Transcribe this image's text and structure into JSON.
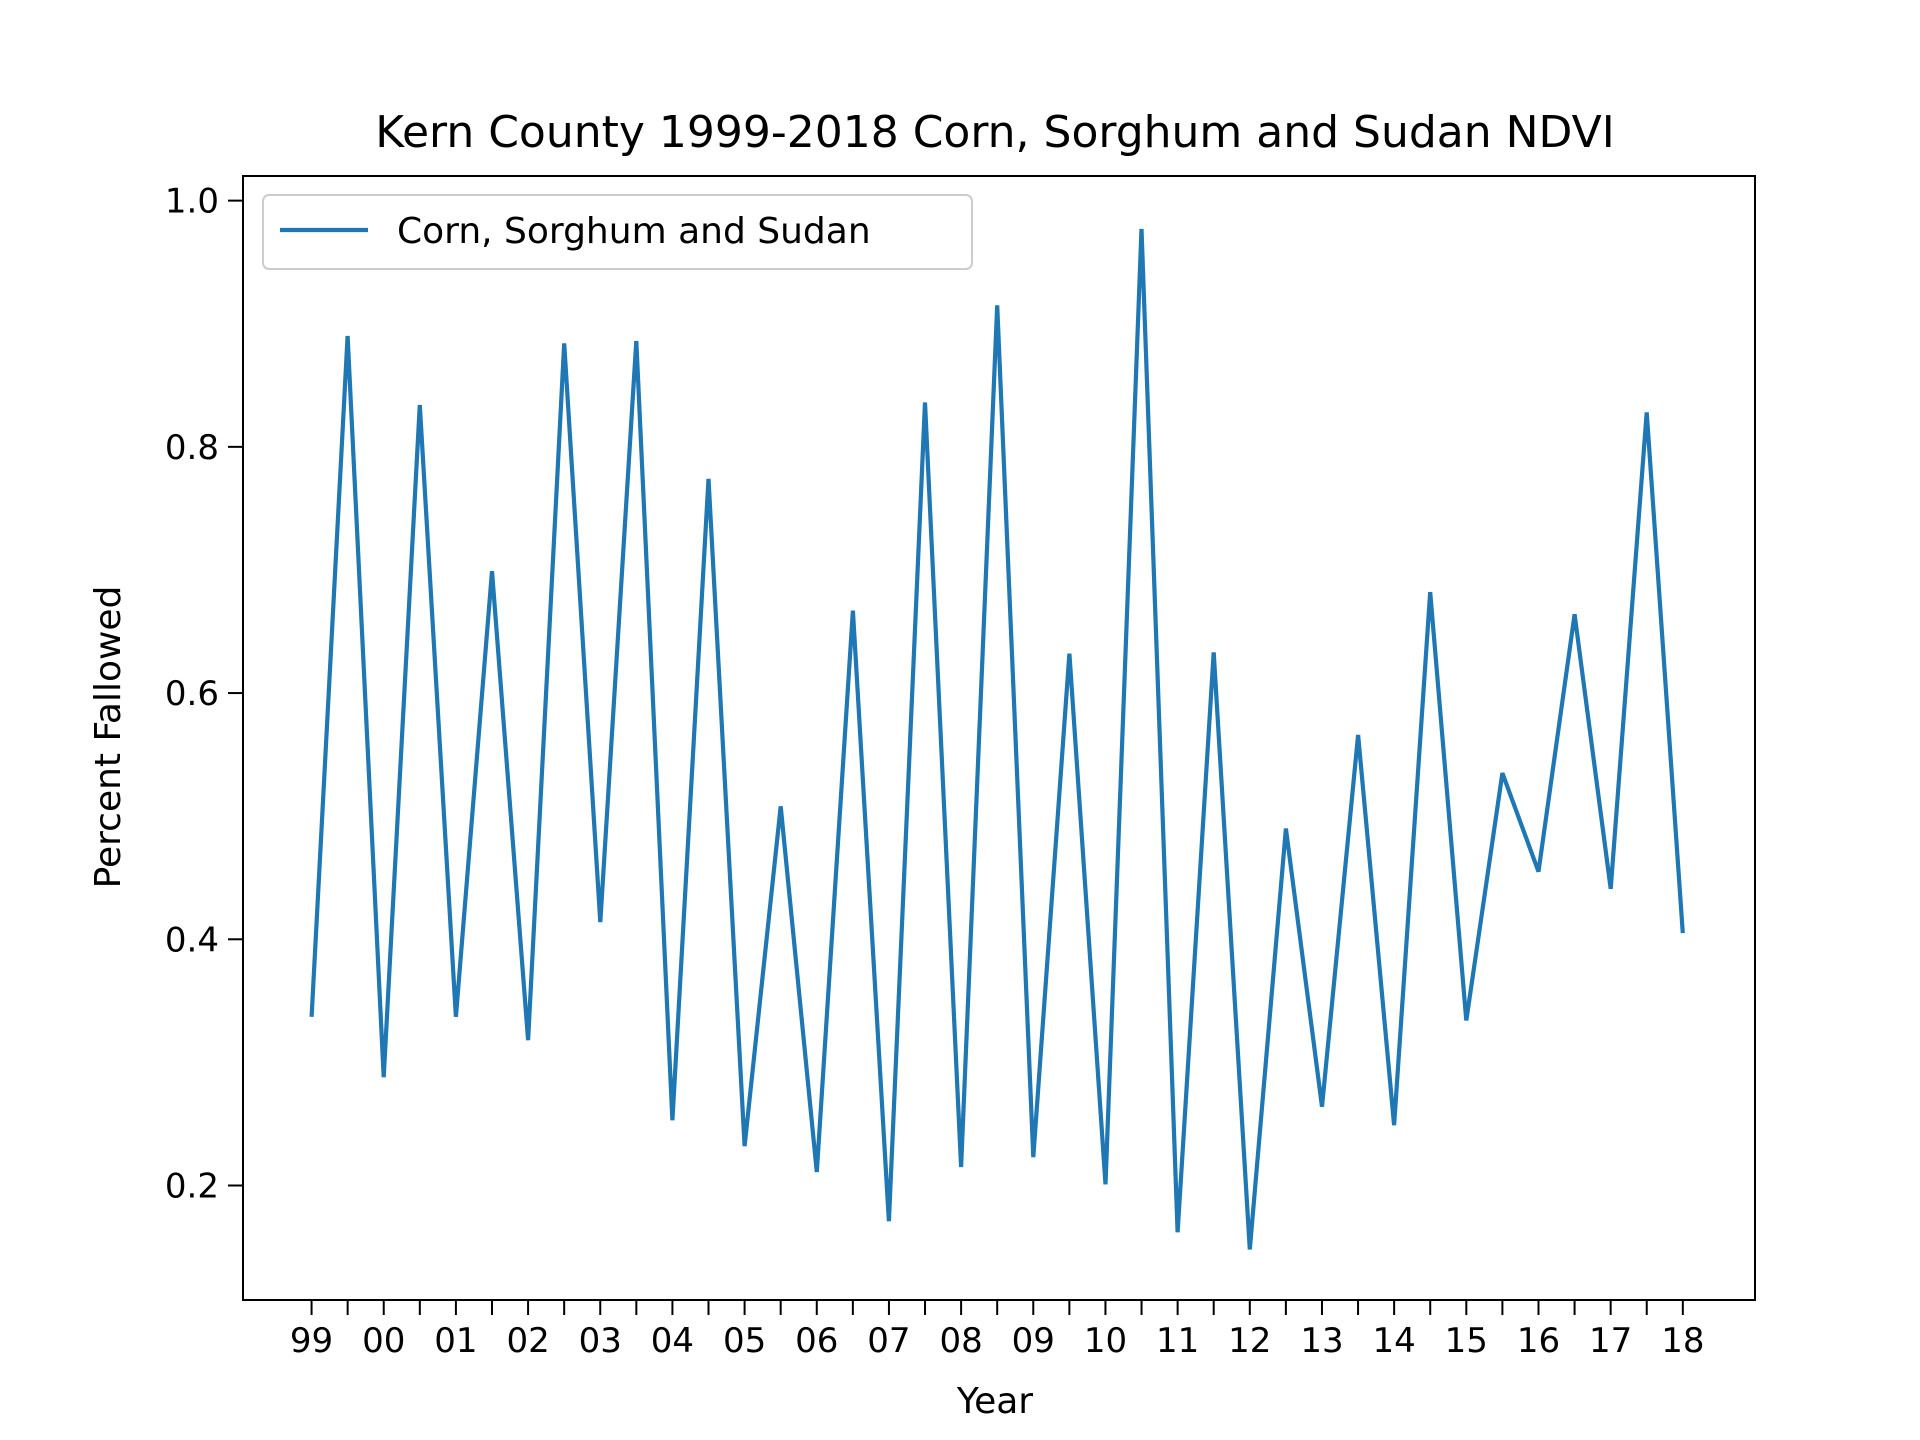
{
  "chart_data": {
    "type": "line",
    "title": "Kern County 1999-2018 Corn, Sorghum and Sudan NDVI",
    "xlabel": "Year",
    "ylabel": "Percent Fallowed",
    "legend": {
      "placement": "upper-left",
      "entries": [
        "Corn, Sorghum and Sudan"
      ]
    },
    "grid": false,
    "xlim": [
      -0.95,
      20.0
    ],
    "ylim": [
      0.107,
      1.02
    ],
    "x_ticks": [
      0,
      1,
      2,
      3,
      4,
      5,
      6,
      7,
      8,
      9,
      10,
      11,
      12,
      13,
      14,
      15,
      16,
      17,
      18,
      19
    ],
    "x_tick_labels": [
      "99",
      "00",
      "01",
      "02",
      "03",
      "04",
      "05",
      "06",
      "07",
      "08",
      "09",
      "10",
      "11",
      "12",
      "13",
      "14",
      "15",
      "16",
      "17",
      "18"
    ],
    "minor_x_ticks": [
      0.5,
      1.5,
      2.5,
      3.5,
      4.5,
      5.5,
      6.5,
      7.5,
      8.5,
      9.5,
      10.5,
      11.5,
      12.5,
      13.5,
      14.5,
      15.5,
      16.5,
      17.5,
      18.5
    ],
    "y_ticks": [
      0.2,
      0.4,
      0.6,
      0.8,
      1.0
    ],
    "y_tick_labels": [
      "0.2",
      "0.4",
      "0.6",
      "0.8",
      "1.0"
    ],
    "series": [
      {
        "name": "Corn, Sorghum and Sudan",
        "color": "#1f77b4",
        "x": [
          0,
          0.5,
          1,
          1.5,
          2,
          2.5,
          3,
          3.5,
          4,
          4.5,
          5,
          5.5,
          6,
          6.5,
          7,
          7.5,
          8,
          8.5,
          9,
          9.5,
          10,
          10.5,
          11,
          11.5,
          12,
          12.5,
          13,
          13.5,
          14,
          14.5,
          15,
          15.5,
          16,
          16.5,
          17,
          17.5,
          18,
          18.5,
          19
        ],
        "values": [
          0.337,
          0.89,
          0.288,
          0.834,
          0.337,
          0.699,
          0.318,
          0.884,
          0.414,
          0.886,
          0.253,
          0.774,
          0.232,
          0.508,
          0.211,
          0.667,
          0.171,
          0.836,
          0.215,
          0.915,
          0.223,
          0.632,
          0.201,
          0.977,
          0.162,
          0.633,
          0.148,
          0.49,
          0.264,
          0.566,
          0.249,
          0.682,
          0.334,
          0.535,
          0.455,
          0.664,
          0.441,
          0.828,
          0.405
        ]
      }
    ]
  }
}
